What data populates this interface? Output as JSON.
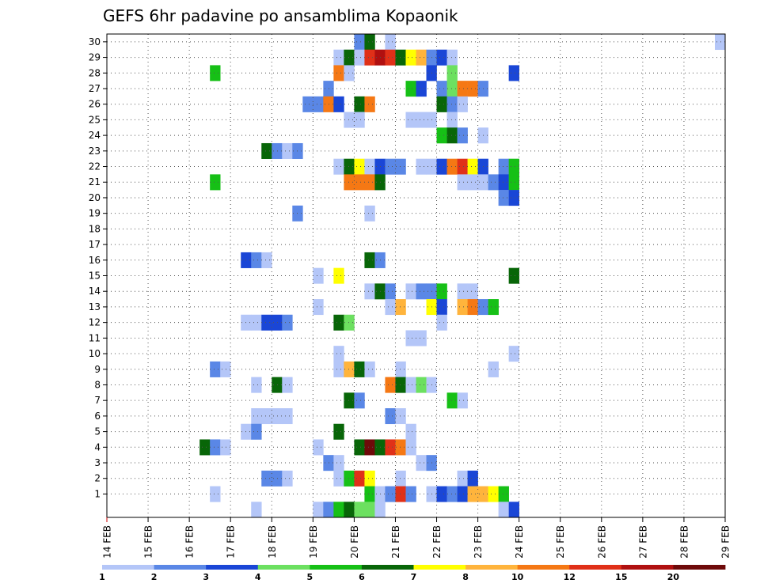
{
  "chart_data": {
    "type": "heatmap",
    "title": "GEFS 6hr padavine po ansamblima Kopaonik",
    "xlabel": "",
    "ylabel": "",
    "x_ticks": [
      "14 FEB",
      "15 FEB",
      "16 FEB",
      "17 FEB",
      "18 FEB",
      "19 FEB",
      "20 FEB",
      "21 FEB",
      "22 FEB",
      "23 FEB",
      "24 FEB",
      "25 FEB",
      "26 FEB",
      "27 FEB",
      "28 FEB",
      "29 FEB"
    ],
    "y_ticks": [
      1,
      2,
      3,
      4,
      5,
      6,
      7,
      8,
      9,
      10,
      11,
      12,
      13,
      14,
      15,
      16,
      17,
      18,
      19,
      20,
      21,
      22,
      23,
      24,
      25,
      26,
      27,
      28,
      29,
      30
    ],
    "steps_per_day": 4,
    "grid": true,
    "legend": {
      "placement": "bottom",
      "labels": [
        "1",
        "2",
        "3",
        "4",
        "5",
        "6",
        "7",
        "8",
        "10",
        "12",
        "15",
        "20"
      ],
      "colors": [
        "#b4c6f8",
        "#5a87e6",
        "#1a46d6",
        "#6ce060",
        "#16c016",
        "#086608",
        "#ffff00",
        "#ffb43c",
        "#f57814",
        "#e03018",
        "#b01010",
        "#6e0a0a"
      ]
    },
    "cells": [
      [
        30,
        24,
        1
      ],
      [
        30,
        25,
        5
      ],
      [
        30,
        27,
        0
      ],
      [
        30,
        59,
        0
      ],
      [
        29,
        22,
        0
      ],
      [
        29,
        23,
        5
      ],
      [
        29,
        24,
        0
      ],
      [
        29,
        25,
        9
      ],
      [
        29,
        26,
        10
      ],
      [
        29,
        27,
        9
      ],
      [
        29,
        28,
        5
      ],
      [
        29,
        29,
        6
      ],
      [
        29,
        30,
        7
      ],
      [
        29,
        31,
        1
      ],
      [
        29,
        32,
        2
      ],
      [
        29,
        33,
        0
      ],
      [
        28,
        10,
        4
      ],
      [
        28,
        22,
        8
      ],
      [
        28,
        23,
        0
      ],
      [
        28,
        31,
        2
      ],
      [
        28,
        33,
        3
      ],
      [
        28,
        39,
        2
      ],
      [
        27,
        21,
        1
      ],
      [
        27,
        29,
        4
      ],
      [
        27,
        30,
        2
      ],
      [
        27,
        32,
        1
      ],
      [
        27,
        33,
        3
      ],
      [
        27,
        34,
        8
      ],
      [
        27,
        35,
        8
      ],
      [
        27,
        36,
        1
      ],
      [
        26,
        19,
        1
      ],
      [
        26,
        20,
        1
      ],
      [
        26,
        21,
        8
      ],
      [
        26,
        22,
        2
      ],
      [
        26,
        24,
        5
      ],
      [
        26,
        25,
        8
      ],
      [
        26,
        32,
        5
      ],
      [
        26,
        33,
        1
      ],
      [
        26,
        34,
        0
      ],
      [
        25,
        23,
        0
      ],
      [
        25,
        24,
        0
      ],
      [
        25,
        29,
        0
      ],
      [
        25,
        30,
        0
      ],
      [
        25,
        31,
        0
      ],
      [
        25,
        33,
        0
      ],
      [
        24,
        32,
        4
      ],
      [
        24,
        33,
        5
      ],
      [
        24,
        34,
        1
      ],
      [
        24,
        36,
        0
      ],
      [
        23,
        15,
        5
      ],
      [
        23,
        16,
        1
      ],
      [
        23,
        17,
        0
      ],
      [
        23,
        18,
        1
      ],
      [
        22,
        22,
        0
      ],
      [
        22,
        23,
        5
      ],
      [
        22,
        24,
        6
      ],
      [
        22,
        25,
        0
      ],
      [
        22,
        26,
        2
      ],
      [
        22,
        27,
        1
      ],
      [
        22,
        28,
        1
      ],
      [
        22,
        30,
        0
      ],
      [
        22,
        31,
        0
      ],
      [
        22,
        32,
        2
      ],
      [
        22,
        33,
        8
      ],
      [
        22,
        34,
        9
      ],
      [
        22,
        35,
        6
      ],
      [
        22,
        36,
        2
      ],
      [
        22,
        38,
        1
      ],
      [
        22,
        39,
        4
      ],
      [
        21,
        10,
        4
      ],
      [
        21,
        23,
        8
      ],
      [
        21,
        24,
        8
      ],
      [
        21,
        25,
        8
      ],
      [
        21,
        26,
        5
      ],
      [
        21,
        34,
        0
      ],
      [
        21,
        35,
        0
      ],
      [
        21,
        36,
        0
      ],
      [
        21,
        37,
        1
      ],
      [
        21,
        38,
        2
      ],
      [
        21,
        39,
        4
      ],
      [
        20,
        38,
        1
      ],
      [
        20,
        39,
        2
      ],
      [
        19,
        18,
        1
      ],
      [
        19,
        25,
        0
      ],
      [
        16,
        13,
        2
      ],
      [
        16,
        14,
        1
      ],
      [
        16,
        15,
        0
      ],
      [
        16,
        25,
        5
      ],
      [
        16,
        26,
        1
      ],
      [
        15,
        20,
        0
      ],
      [
        15,
        22,
        6
      ],
      [
        15,
        39,
        5
      ],
      [
        14,
        25,
        0
      ],
      [
        14,
        26,
        5
      ],
      [
        14,
        27,
        1
      ],
      [
        14,
        29,
        0
      ],
      [
        14,
        30,
        1
      ],
      [
        14,
        31,
        1
      ],
      [
        14,
        32,
        4
      ],
      [
        14,
        34,
        0
      ],
      [
        14,
        35,
        0
      ],
      [
        13,
        20,
        0
      ],
      [
        13,
        27,
        0
      ],
      [
        13,
        28,
        7
      ],
      [
        13,
        31,
        6
      ],
      [
        13,
        32,
        2
      ],
      [
        13,
        34,
        7
      ],
      [
        13,
        35,
        8
      ],
      [
        13,
        36,
        1
      ],
      [
        13,
        37,
        4
      ],
      [
        12,
        13,
        0
      ],
      [
        12,
        14,
        0
      ],
      [
        12,
        15,
        2
      ],
      [
        12,
        16,
        2
      ],
      [
        12,
        17,
        1
      ],
      [
        12,
        22,
        5
      ],
      [
        12,
        23,
        3
      ],
      [
        12,
        32,
        0
      ],
      [
        11,
        29,
        0
      ],
      [
        11,
        30,
        0
      ],
      [
        10,
        22,
        0
      ],
      [
        10,
        39,
        0
      ],
      [
        9,
        10,
        1
      ],
      [
        9,
        11,
        0
      ],
      [
        9,
        22,
        0
      ],
      [
        9,
        23,
        7
      ],
      [
        9,
        24,
        5
      ],
      [
        9,
        25,
        0
      ],
      [
        9,
        28,
        0
      ],
      [
        9,
        37,
        0
      ],
      [
        8,
        14,
        0
      ],
      [
        8,
        16,
        5
      ],
      [
        8,
        17,
        0
      ],
      [
        8,
        27,
        8
      ],
      [
        8,
        28,
        5
      ],
      [
        8,
        29,
        0
      ],
      [
        8,
        30,
        3
      ],
      [
        8,
        31,
        0
      ],
      [
        7,
        23,
        5
      ],
      [
        7,
        24,
        1
      ],
      [
        7,
        33,
        4
      ],
      [
        7,
        34,
        0
      ],
      [
        6,
        14,
        0
      ],
      [
        6,
        15,
        0
      ],
      [
        6,
        16,
        0
      ],
      [
        6,
        17,
        0
      ],
      [
        6,
        27,
        1
      ],
      [
        6,
        28,
        0
      ],
      [
        5,
        13,
        0
      ],
      [
        5,
        14,
        1
      ],
      [
        5,
        22,
        5
      ],
      [
        5,
        29,
        0
      ],
      [
        4,
        9,
        5
      ],
      [
        4,
        10,
        1
      ],
      [
        4,
        11,
        0
      ],
      [
        4,
        20,
        0
      ],
      [
        4,
        24,
        5
      ],
      [
        4,
        25,
        11
      ],
      [
        4,
        26,
        5
      ],
      [
        4,
        27,
        9
      ],
      [
        4,
        28,
        8
      ],
      [
        4,
        29,
        0
      ],
      [
        3,
        21,
        1
      ],
      [
        3,
        22,
        0
      ],
      [
        3,
        30,
        0
      ],
      [
        3,
        31,
        1
      ],
      [
        2,
        15,
        1
      ],
      [
        2,
        16,
        1
      ],
      [
        2,
        17,
        0
      ],
      [
        2,
        22,
        0
      ],
      [
        2,
        23,
        4
      ],
      [
        2,
        24,
        9
      ],
      [
        2,
        25,
        6
      ],
      [
        2,
        28,
        0
      ],
      [
        2,
        34,
        0
      ],
      [
        2,
        35,
        2
      ],
      [
        1,
        10,
        0
      ],
      [
        1,
        25,
        4
      ],
      [
        1,
        26,
        0
      ],
      [
        1,
        27,
        1
      ],
      [
        1,
        28,
        9
      ],
      [
        1,
        29,
        1
      ],
      [
        1,
        31,
        0
      ],
      [
        1,
        32,
        2
      ],
      [
        1,
        33,
        1
      ],
      [
        1,
        34,
        2
      ],
      [
        1,
        35,
        7
      ],
      [
        1,
        36,
        7
      ],
      [
        1,
        37,
        6
      ],
      [
        1,
        38,
        4
      ],
      [
        0,
        14,
        0
      ],
      [
        0,
        20,
        0
      ],
      [
        0,
        21,
        1
      ],
      [
        0,
        22,
        4
      ],
      [
        0,
        23,
        5
      ],
      [
        0,
        24,
        3
      ],
      [
        0,
        25,
        3
      ],
      [
        0,
        26,
        0
      ],
      [
        0,
        38,
        0
      ],
      [
        0,
        39,
        2
      ]
    ]
  }
}
